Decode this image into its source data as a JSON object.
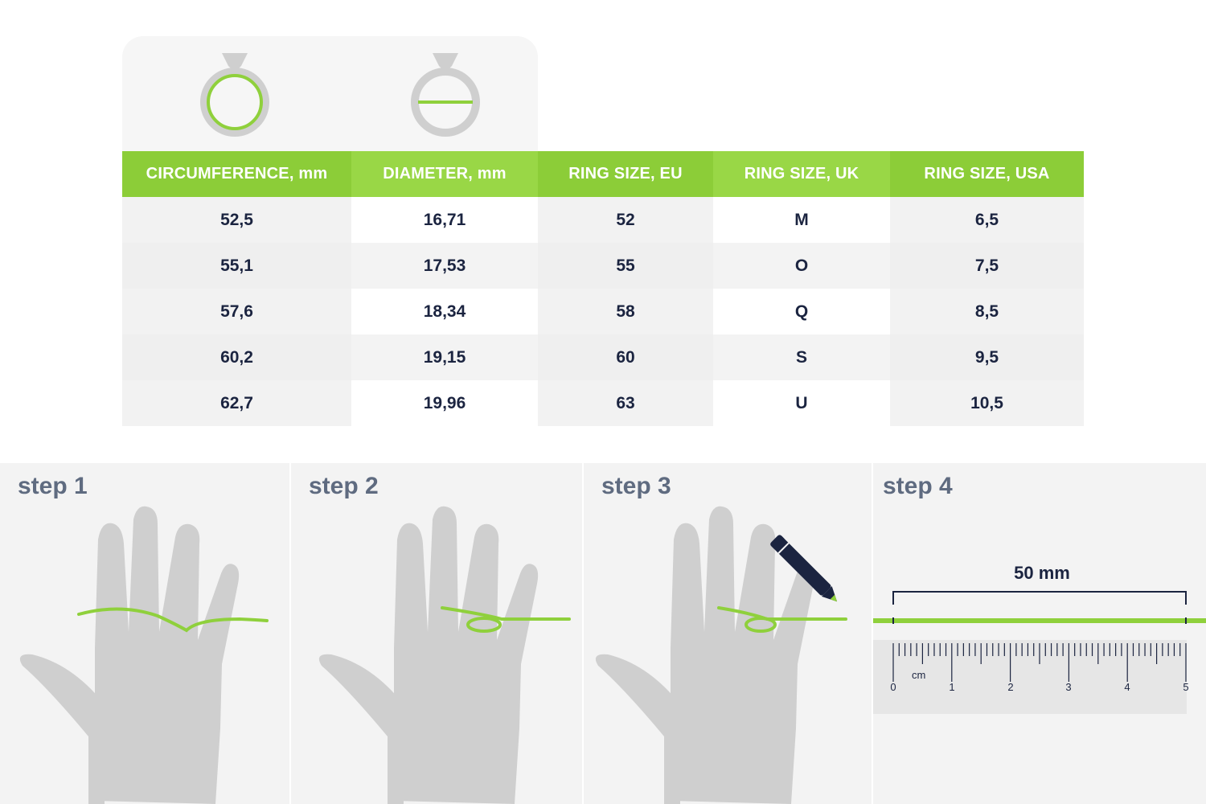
{
  "table": {
    "headers": [
      "CIRCUMFERENCE, mm",
      "DIAMETER, mm",
      "RING SIZE, EU",
      "RING SIZE, UK",
      "RING SIZE, USA"
    ],
    "rows": [
      [
        "52,5",
        "16,71",
        "52",
        "M",
        "6,5"
      ],
      [
        "55,1",
        "17,53",
        "55",
        "O",
        "7,5"
      ],
      [
        "57,6",
        "18,34",
        "58",
        "Q",
        "8,5"
      ],
      [
        "60,2",
        "19,15",
        "60",
        "S",
        "9,5"
      ],
      [
        "62,7",
        "19,96",
        "63",
        "U",
        "10,5"
      ]
    ]
  },
  "icons": {
    "circumference": "ring-circumference-icon",
    "diameter": "ring-diameter-icon",
    "hand": "hand-icon",
    "pencil": "pencil-icon",
    "ruler": "ruler-icon"
  },
  "steps": {
    "step1": "step 1",
    "step2": "step 2",
    "step3": "step 3",
    "step4": "step 4"
  },
  "ruler": {
    "measure_label": "50 mm",
    "unit": "cm",
    "numbers": [
      "0",
      "1",
      "2",
      "3",
      "4",
      "5"
    ]
  },
  "colors": {
    "accent_green": "#8fd03c",
    "navy": "#1b2440",
    "hand_gray": "#cfcfcf",
    "step_label": "#5f6b80"
  }
}
